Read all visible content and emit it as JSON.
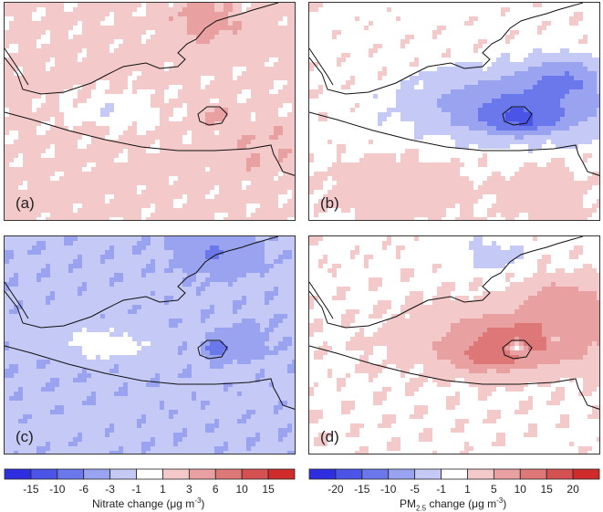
{
  "chart_data": [
    {
      "type": "heatmap",
      "panel_label": "(a)",
      "colorbar": "nitrate",
      "field": "nitrate_increase_mild"
    },
    {
      "type": "heatmap",
      "panel_label": "(b)",
      "colorbar": "pm25",
      "field": "pm25_decrease_strong"
    },
    {
      "type": "heatmap",
      "panel_label": "(c)",
      "colorbar": "nitrate",
      "field": "nitrate_decrease_moderate"
    },
    {
      "type": "heatmap",
      "panel_label": "(d)",
      "colorbar": "pm25",
      "field": "pm25_increase_strong"
    }
  ],
  "colorbars": {
    "nitrate": {
      "title_main": "Nitrate change (μg m",
      "title_sup": "-3",
      "title_end": ")",
      "ticks": [
        "-15",
        "-10",
        "-6",
        "-3",
        "-1",
        "1",
        "3",
        "6",
        "10",
        "15"
      ],
      "colors": [
        "#2e2ee0",
        "#4a55e8",
        "#6a78ec",
        "#9aa3ef",
        "#c5c9f5",
        "#ffffff",
        "#f3c9c9",
        "#e9a0a0",
        "#de7777",
        "#d55050",
        "#cf2b2b"
      ]
    },
    "pm25": {
      "title_main": "PM",
      "title_sub": "2.5",
      "title_mid": " change (μg m",
      "title_sup": "-3",
      "title_end": ")",
      "ticks": [
        "-20",
        "-15",
        "-10",
        "-5",
        "-1",
        "1",
        "5",
        "10",
        "15",
        "20"
      ],
      "colors": [
        "#2e2ee0",
        "#4a55e8",
        "#6a78ec",
        "#9aa3ef",
        "#c5c9f5",
        "#ffffff",
        "#f3c9c9",
        "#e9a0a0",
        "#de7777",
        "#d55050",
        "#cf2b2b"
      ]
    }
  }
}
